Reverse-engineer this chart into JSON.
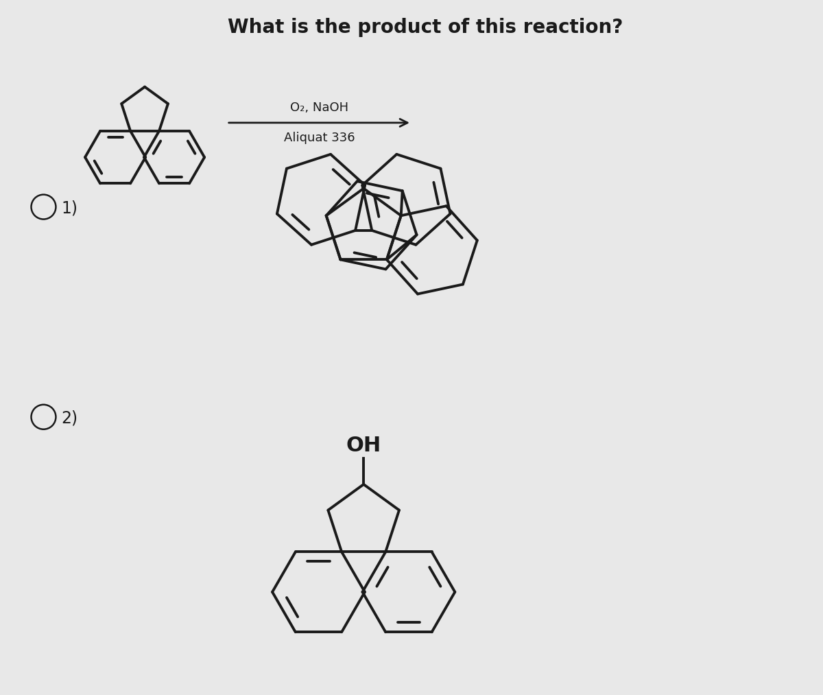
{
  "title": "What is the product of this reaction?",
  "title_fontsize": 20,
  "bg_color": "#e8e8e8",
  "line_color": "#1a1a1a",
  "line_width": 2.8,
  "condition_line1": "O₂, NaOH",
  "condition_line2": "Aliquat 336",
  "option1_label": "1)",
  "option2_label": "2)",
  "oh_label": "OH"
}
